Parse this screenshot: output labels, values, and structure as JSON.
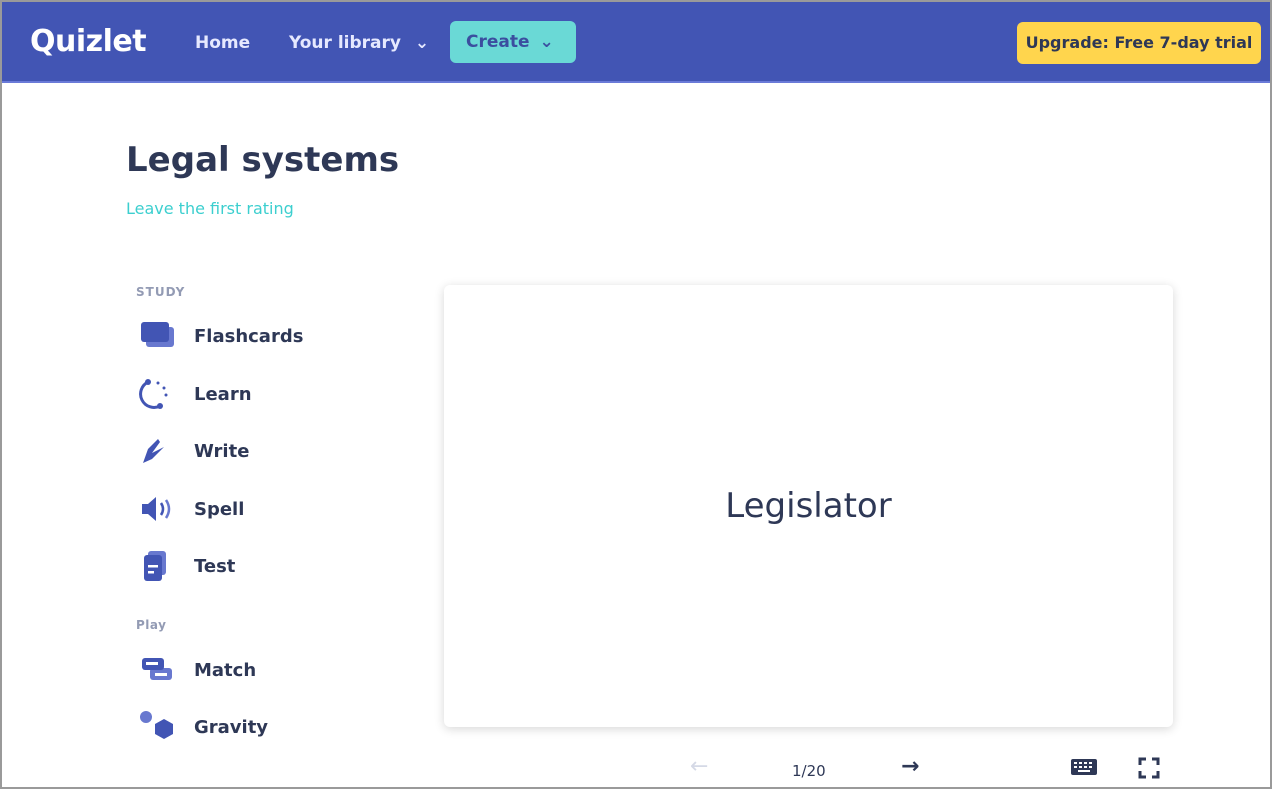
{
  "header": {
    "logo": "Quizlet",
    "home": "Home",
    "library": "Your library",
    "create": "Create",
    "upgrade": "Upgrade: Free 7-day trial"
  },
  "set": {
    "title": "Legal systems",
    "rating_link": "Leave the first rating"
  },
  "sidebar": {
    "study_heading": "STUDY",
    "study": [
      {
        "label": "Flashcards",
        "icon": "flashcards-icon"
      },
      {
        "label": "Learn",
        "icon": "learn-icon"
      },
      {
        "label": "Write",
        "icon": "write-icon"
      },
      {
        "label": "Spell",
        "icon": "spell-icon"
      },
      {
        "label": "Test",
        "icon": "test-icon"
      }
    ],
    "play_heading": "Play",
    "play": [
      {
        "label": "Match",
        "icon": "match-icon"
      },
      {
        "label": "Gravity",
        "icon": "gravity-icon"
      }
    ]
  },
  "card": {
    "term": "Legislator",
    "progress": "1/20"
  },
  "colors": {
    "header": "#4255b4",
    "create": "#6ad9d6",
    "upgrade": "#ffd54d",
    "icon": "#4255b4"
  }
}
